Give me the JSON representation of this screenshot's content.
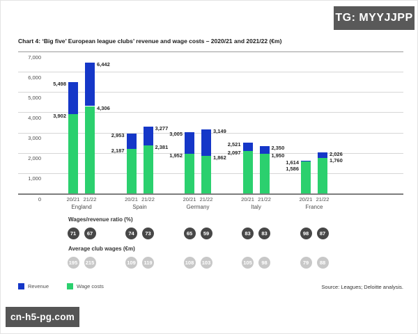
{
  "badge": {
    "text": "TG: MYYJJPP"
  },
  "title": "Chart 4: ‘Big five’ European league clubs’ revenue and wage costs – 2020/21 and 2021/22 (€m)",
  "row_headers": {
    "ratio": "Wages/revenue ratio (%)",
    "avg_wages": "Average club wages (€m)"
  },
  "legend": {
    "items": [
      {
        "label": "Revenue",
        "color": "#1537c8"
      },
      {
        "label": "Wage costs",
        "color": "#2bd06e"
      }
    ]
  },
  "source": "Source: Leagues; Deloitte analysis.",
  "watermark": "cn-h5-pg.com",
  "chart_data": {
    "type": "bar",
    "stacked": true,
    "title": "‘Big five’ European league clubs’ revenue and wage costs – 2020/21 and 2021/22 (€m)",
    "categories": [
      "England",
      "Spain",
      "Germany",
      "Italy",
      "France"
    ],
    "seasons": [
      "20/21",
      "21/22"
    ],
    "series": [
      {
        "name": "Revenue",
        "color": "#1537c8",
        "values": [
          [
            5498,
            6442
          ],
          [
            2953,
            3277
          ],
          [
            3005,
            3149
          ],
          [
            2521,
            2350
          ],
          [
            1614,
            2026
          ]
        ]
      },
      {
        "name": "Wage costs",
        "color": "#2bd06e",
        "values": [
          [
            3902,
            4306
          ],
          [
            2187,
            2381
          ],
          [
            1952,
            1862
          ],
          [
            2097,
            1950
          ],
          [
            1586,
            1760
          ]
        ]
      }
    ],
    "wages_revenue_ratio_pct": [
      [
        71,
        67
      ],
      [
        74,
        73
      ],
      [
        65,
        59
      ],
      [
        83,
        83
      ],
      [
        98,
        87
      ]
    ],
    "avg_club_wages_eur_m": [
      [
        195,
        215
      ],
      [
        109,
        119
      ],
      [
        108,
        103
      ],
      [
        105,
        98
      ],
      [
        79,
        88
      ]
    ],
    "ylim": [
      0,
      7000
    ],
    "ytick_step": 1000,
    "grid": true,
    "legend_position": "bottom-left",
    "ratio_circle_color": "#474747",
    "avg_wages_circle_color": "#c8c8c8"
  }
}
